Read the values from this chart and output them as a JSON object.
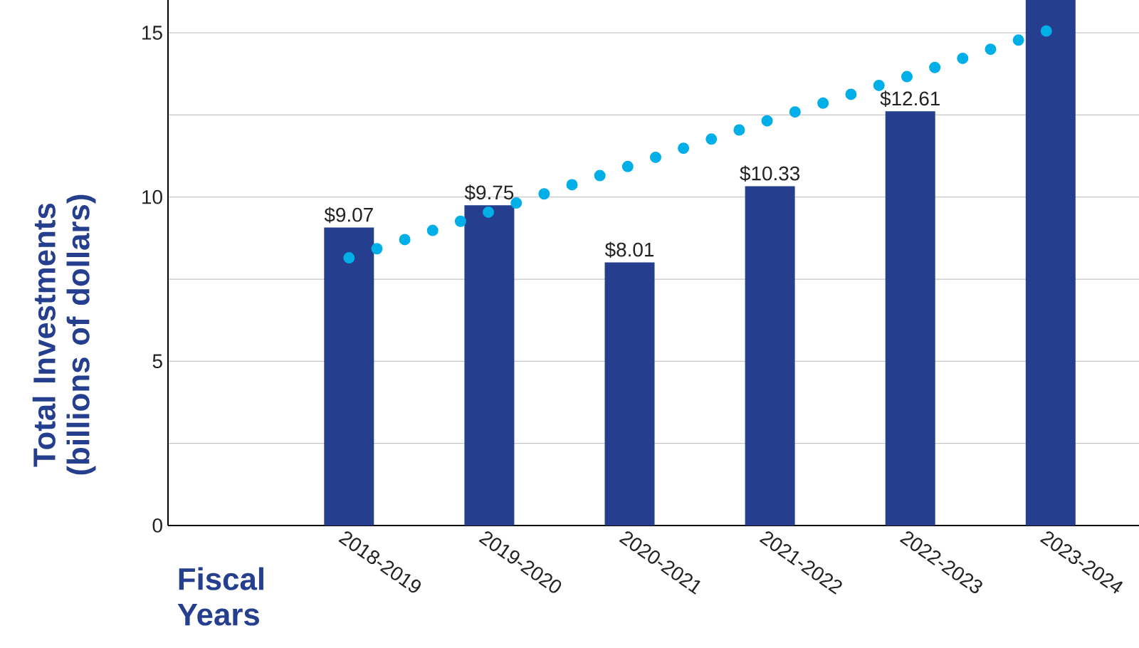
{
  "chart_data": {
    "type": "bar",
    "xlabel": "Fiscal Years",
    "ylabel": "Total Investments (billions of dollars)",
    "categories": [
      "2018-2019",
      "2019-2020",
      "2020-2021",
      "2021-2022",
      "2022-2023",
      "2023-2024"
    ],
    "series": [
      {
        "color": "#253f8e",
        "values": [
          9.07,
          9.75,
          8.01,
          10.33,
          12.61,
          16.0
        ],
        "value_labels": [
          "$9.07",
          "$9.75",
          "$8.01",
          "$10.33",
          "$12.61",
          null
        ]
      },
      {
        "type": "line",
        "color": "#00aee8",
        "values": [
          8.15,
          9.55,
          10.95,
          12.35,
          13.7,
          15.1
        ],
        "line_style": "dotted"
      }
    ],
    "ylim": [
      0,
      16
    ],
    "yticks": [
      0,
      5,
      10,
      15
    ],
    "grid": "y"
  }
}
